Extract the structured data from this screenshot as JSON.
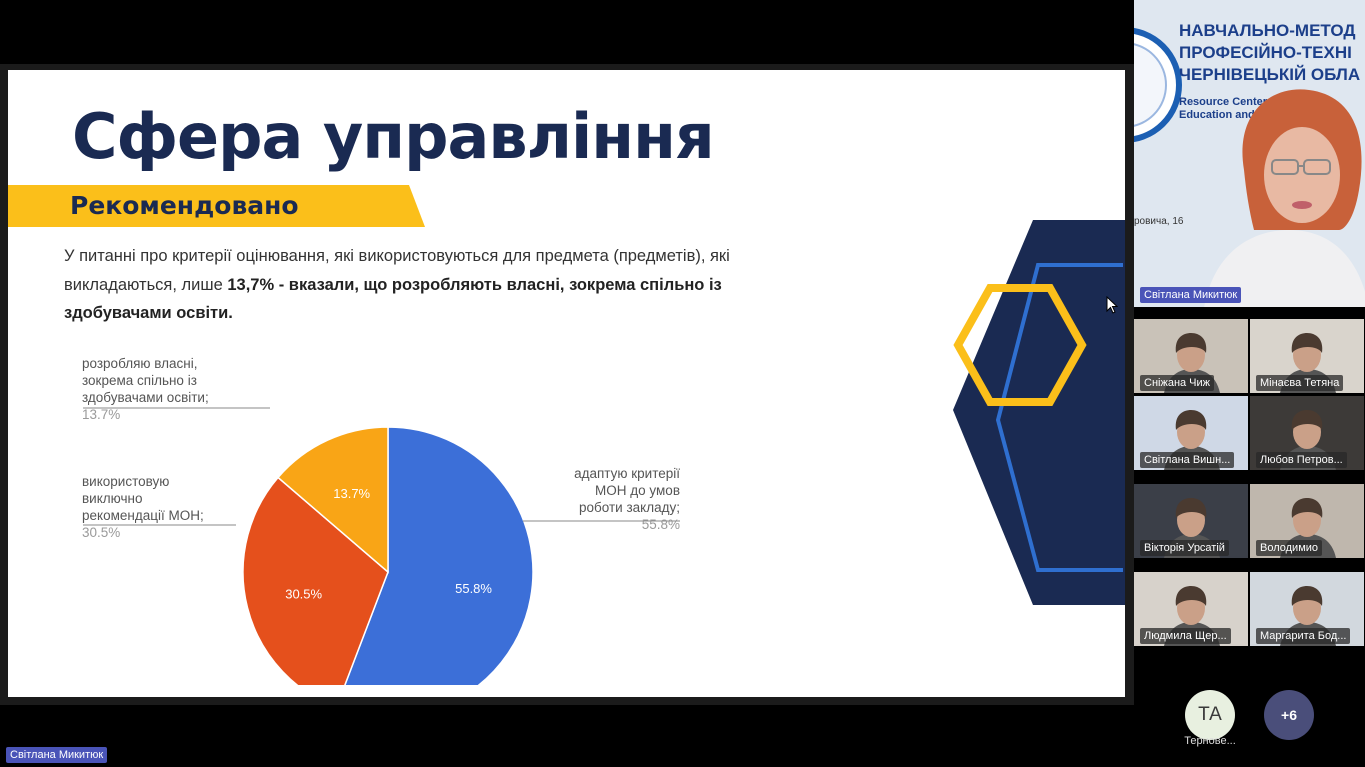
{
  "slide": {
    "title": "Сфера управління",
    "banner": "Рекомендовано",
    "intro_normal": "У питанні про критерії оцінювання, які використовуються для предмета (предметів), які викладаються, лише ",
    "intro_bold": "13,7% - вказали, що розробляють власні, зокрема спільно із здобувачами освіти."
  },
  "chart_data": {
    "type": "pie",
    "title": "",
    "categories": [
      "адаптую критерії МОН до умов роботи закладу;",
      "використовую виключно рекомендації МОН;",
      "розробляю власні, зокрема спільно із здобувачами освіти;"
    ],
    "values": [
      55.8,
      30.5,
      13.7
    ],
    "slice_labels": [
      "55.8%",
      "30.5%",
      "13.7%"
    ],
    "colors": [
      "#3c6fd8",
      "#e5501c",
      "#f9a516"
    ],
    "legend": "callouts"
  },
  "callouts": {
    "own": {
      "text": "розробляю власні,\nзокрема спільно із\nздобувачами освіти;",
      "pct": "13.7%"
    },
    "mon": {
      "text": "використовую\nвиключно\nрекомендації МОН;",
      "pct": "30.5%"
    },
    "adapt": {
      "text": "адаптую критерії\nМОН до умов\nроботи закладу;",
      "pct": "55.8%"
    }
  },
  "presenter": {
    "org_title": "НАВЧАЛЬНО-МЕТОД\nПРОФЕСІЙНО-ТЕХНІ\nЧЕРНІВЕЦЬКІЙ ОБЛА",
    "org_sub": "Resource Center\nEducation and T",
    "street": "ровича, 16",
    "name": "Світлана Микитюк"
  },
  "participants": [
    {
      "name": "Сніжана Чиж",
      "bg": "#c9c2b8"
    },
    {
      "name": "Мінаєва Тетяна",
      "bg": "#d9d4cc"
    },
    {
      "name": "Світлана Вишн...",
      "bg": "#cfd8e6"
    },
    {
      "name": "Любов Петров...",
      "bg": "#3d3a38"
    },
    {
      "name": "Вікторія Урсатій",
      "bg": "#3b3f48"
    },
    {
      "name": "Володимио",
      "bg": "#bfb7ad"
    },
    {
      "name": "Людмила Щер...",
      "bg": "#d7d2cb"
    },
    {
      "name": "Маргарита Бод...",
      "bg": "#d2d8de"
    }
  ],
  "avatar_ta": {
    "initials": "ТА",
    "name": "Тернове..."
  },
  "more": {
    "label": "+6"
  },
  "bottom_name": "Світлана Микитюк"
}
